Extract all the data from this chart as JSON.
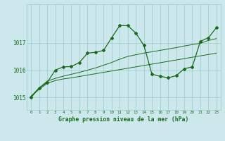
{
  "background_color": "#cce8ec",
  "grid_color": "#99cccc",
  "line_color": "#1a6b1a",
  "title": "Graphe pression niveau de la mer (hPa)",
  "xlim": [
    -0.5,
    23.5
  ],
  "ylim": [
    1014.55,
    1018.4
  ],
  "yticks": [
    1015,
    1016,
    1017
  ],
  "ytick_labels": [
    "1015",
    "1016",
    "1017"
  ],
  "xticks": [
    0,
    1,
    2,
    3,
    4,
    5,
    6,
    7,
    8,
    9,
    10,
    11,
    12,
    13,
    14,
    15,
    16,
    17,
    18,
    19,
    20,
    21,
    22,
    23
  ],
  "series0_x": [
    0,
    1,
    2,
    3,
    4,
    5,
    6,
    7,
    8,
    9,
    10,
    11,
    12,
    13,
    14,
    15,
    16,
    17,
    18,
    19,
    20,
    21,
    22,
    23
  ],
  "series0_y": [
    1015.0,
    1015.35,
    1015.55,
    1016.0,
    1016.12,
    1016.13,
    1016.28,
    1016.62,
    1016.65,
    1016.72,
    1017.18,
    1017.62,
    1017.62,
    1017.35,
    1016.9,
    1015.85,
    1015.78,
    1015.72,
    1015.8,
    1016.05,
    1016.12,
    1017.05,
    1017.18,
    1017.55
  ],
  "series1_x": [
    0,
    1,
    2,
    3,
    4,
    5,
    6,
    7,
    8,
    9,
    10,
    11,
    12,
    13,
    14,
    15,
    16,
    17,
    18,
    19,
    20,
    21,
    22,
    23
  ],
  "series1_y": [
    1015.05,
    1015.35,
    1015.6,
    1015.7,
    1015.78,
    1015.85,
    1015.92,
    1016.0,
    1016.08,
    1016.18,
    1016.28,
    1016.4,
    1016.5,
    1016.56,
    1016.62,
    1016.67,
    1016.72,
    1016.77,
    1016.82,
    1016.88,
    1016.93,
    1016.98,
    1017.08,
    1017.15
  ],
  "series2_x": [
    0,
    1,
    2,
    3,
    4,
    5,
    6,
    7,
    8,
    9,
    10,
    11,
    12,
    13,
    14,
    15,
    16,
    17,
    18,
    19,
    20,
    21,
    22,
    23
  ],
  "series2_y": [
    1015.05,
    1015.3,
    1015.52,
    1015.62,
    1015.68,
    1015.72,
    1015.77,
    1015.82,
    1015.87,
    1015.92,
    1015.97,
    1016.02,
    1016.07,
    1016.12,
    1016.17,
    1016.22,
    1016.27,
    1016.32,
    1016.37,
    1016.42,
    1016.47,
    1016.52,
    1016.57,
    1016.62
  ]
}
